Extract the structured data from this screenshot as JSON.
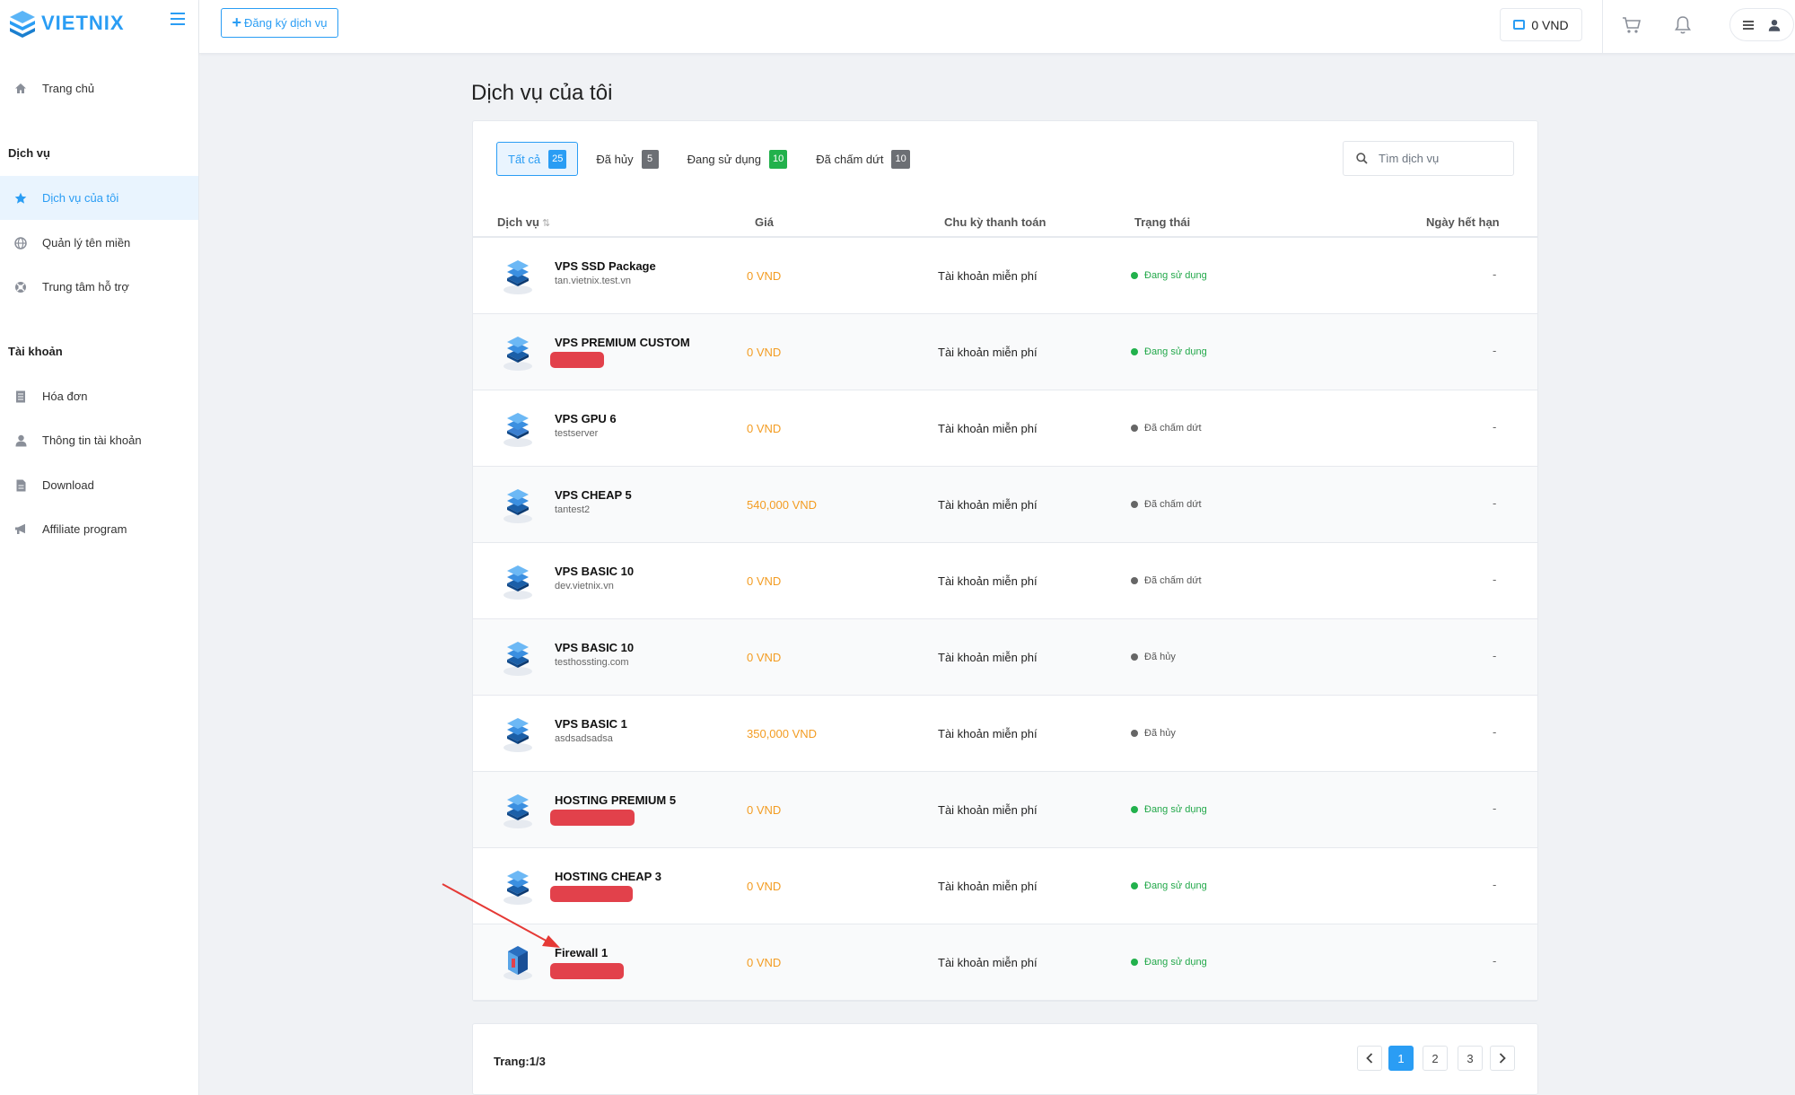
{
  "brand": {
    "name": "VIETNIX"
  },
  "topbar": {
    "register_label": "Đăng ký dịch vụ",
    "register_icon": "plus-icon",
    "balance": "0 VND"
  },
  "sidebar": {
    "home": "Trang chủ",
    "section_services": "Dịch vụ",
    "items_services": [
      {
        "label": "Dịch vụ của tôi",
        "icon": "star-icon",
        "active": true
      },
      {
        "label": "Quản lý tên miền",
        "icon": "globe-icon"
      },
      {
        "label": "Trung tâm hỗ trợ",
        "icon": "lifebuoy-icon"
      }
    ],
    "section_account": "Tài khoản",
    "items_account": [
      {
        "label": "Hóa đơn",
        "icon": "invoice-icon"
      },
      {
        "label": "Thông tin tài khoản",
        "icon": "user-icon"
      },
      {
        "label": "Download",
        "icon": "file-icon"
      },
      {
        "label": "Affiliate program",
        "icon": "megaphone-icon"
      }
    ]
  },
  "main": {
    "title": "Dịch vụ của tôi",
    "tabs": [
      {
        "label": "Tất cả",
        "count": "25",
        "color": "#2a9df4"
      },
      {
        "label": "Đã hủy",
        "count": "5",
        "color": "#6c6f74"
      },
      {
        "label": "Đang sử dụng",
        "count": "10",
        "color": "#22b14c"
      },
      {
        "label": "Đã chấm dứt",
        "count": "10",
        "color": "#6c6f74"
      }
    ],
    "search_placeholder": "Tìm dịch vụ",
    "columns": {
      "service": "Dịch vụ",
      "price": "Giá",
      "cycle": "Chu kỳ thanh toán",
      "status": "Trạng thái",
      "expiry": "Ngày hết hạn"
    },
    "rows": [
      {
        "name": "VPS SSD Package",
        "sub": "tan.vietnix.test.vn",
        "price": "0 VND",
        "cycle": "Tài khoản miễn phí",
        "status": "Đang sử dụng",
        "state": "active",
        "expiry": "-"
      },
      {
        "name": "VPS PREMIUM CUSTOM",
        "sub": "",
        "price": "0 VND",
        "cycle": "Tài khoản miễn phí",
        "status": "Đang sử dụng",
        "state": "active",
        "expiry": "-"
      },
      {
        "name": "VPS GPU 6",
        "sub": "testserver",
        "price": "0 VND",
        "cycle": "Tài khoản miễn phí",
        "status": "Đã chấm dứt",
        "state": "ended",
        "expiry": "-"
      },
      {
        "name": "VPS CHEAP 5",
        "sub": "tantest2",
        "price": "540,000 VND",
        "cycle": "Tài khoản miễn phí",
        "status": "Đã chấm dứt",
        "state": "ended",
        "expiry": "-"
      },
      {
        "name": "VPS BASIC 10",
        "sub": "dev.vietnix.vn",
        "price": "0 VND",
        "cycle": "Tài khoản miễn phí",
        "status": "Đã chấm dứt",
        "state": "ended",
        "expiry": "-"
      },
      {
        "name": "VPS BASIC 10",
        "sub": "testhossting.com",
        "price": "0 VND",
        "cycle": "Tài khoản miễn phí",
        "status": "Đã hủy",
        "state": "ended",
        "expiry": "-"
      },
      {
        "name": "VPS BASIC 1",
        "sub": "asdsadsadsa",
        "price": "350,000 VND",
        "cycle": "Tài khoản miễn phí",
        "status": "Đã hủy",
        "state": "ended",
        "expiry": "-"
      },
      {
        "name": "HOSTING PREMIUM 5",
        "sub": "",
        "price": "0 VND",
        "cycle": "Tài khoản miễn phí",
        "status": "Đang sử dụng",
        "state": "active",
        "expiry": "-"
      },
      {
        "name": "HOSTING CHEAP 3",
        "sub": "",
        "price": "0 VND",
        "cycle": "Tài khoản miễn phí",
        "status": "Đang sử dụng",
        "state": "active",
        "expiry": "-"
      },
      {
        "name": "Firewall 1",
        "sub": "",
        "price": "0 VND",
        "cycle": "Tài khoản miễn phí",
        "status": "Đang sử dụng",
        "state": "active",
        "expiry": "-"
      }
    ],
    "pagination": {
      "info": "Trang:1/3",
      "pages": [
        "1",
        "2",
        "3"
      ],
      "current": "1"
    }
  },
  "colors": {
    "accent": "#2a9df4",
    "price": "#f39c22",
    "active": "#22b14c",
    "redaction": "#e2414b",
    "annotation": "#e53935"
  }
}
